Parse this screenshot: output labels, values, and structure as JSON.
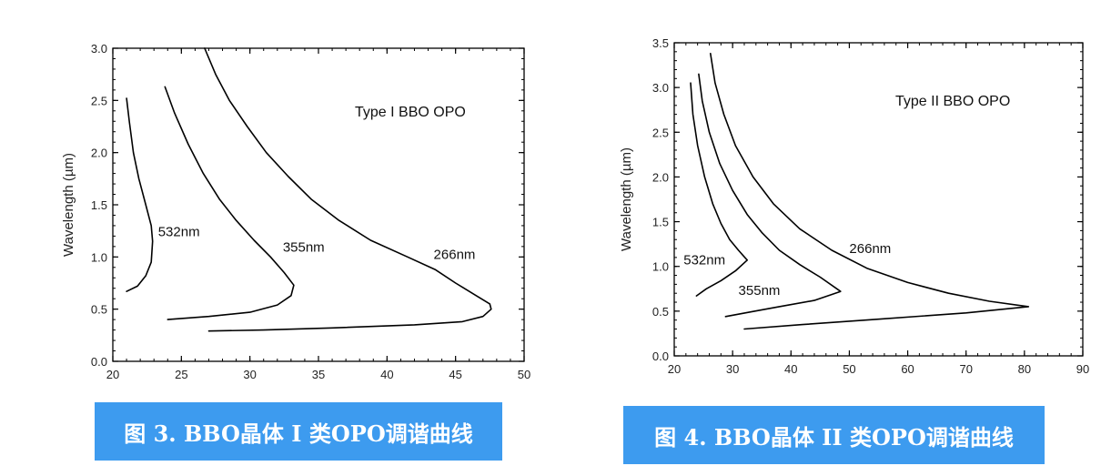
{
  "theme": {
    "caption_bg": "#3d9bef",
    "caption_fg": "#ffffff",
    "line_color": "#000000"
  },
  "chart_data": [
    {
      "type": "line",
      "title": "Type I BBO OPO",
      "xlabel": "",
      "ylabel": "Wavelength (µm)",
      "xlim": [
        20,
        50
      ],
      "ylim": [
        0.0,
        3.0
      ],
      "xticks": [
        "20",
        "25",
        "30",
        "35",
        "40",
        "45",
        "50"
      ],
      "yticks": [
        "0.0",
        "0.5",
        "1.0",
        "1.5",
        "2.0",
        "2.5",
        "3.0"
      ],
      "xtick_values": [
        20,
        25,
        30,
        35,
        40,
        45,
        50
      ],
      "ytick_values": [
        0,
        0.5,
        1.0,
        1.5,
        2.0,
        2.5,
        3.0
      ],
      "caption": "图 3. BBO晶体 I 类OPO调谐曲线",
      "series": [
        {
          "name": "532nm",
          "label_at": [
            23.3,
            1.2
          ],
          "points": [
            [
              21.0,
              2.52
            ],
            [
              21.2,
              2.3
            ],
            [
              21.5,
              2.0
            ],
            [
              21.9,
              1.75
            ],
            [
              22.4,
              1.5
            ],
            [
              22.8,
              1.3
            ],
            [
              22.9,
              1.15
            ],
            [
              22.8,
              0.95
            ],
            [
              22.4,
              0.82
            ],
            [
              21.8,
              0.72
            ],
            [
              21.0,
              0.67
            ]
          ]
        },
        {
          "name": "355nm",
          "label_at": [
            32.4,
            1.05
          ],
          "points": [
            [
              23.8,
              2.63
            ],
            [
              24.5,
              2.38
            ],
            [
              25.5,
              2.08
            ],
            [
              26.6,
              1.8
            ],
            [
              27.8,
              1.55
            ],
            [
              29.0,
              1.35
            ],
            [
              30.3,
              1.16
            ],
            [
              31.5,
              1.0
            ],
            [
              32.5,
              0.85
            ],
            [
              33.2,
              0.73
            ],
            [
              33.0,
              0.63
            ],
            [
              32.0,
              0.54
            ],
            [
              30.0,
              0.47
            ],
            [
              27.0,
              0.43
            ],
            [
              24.0,
              0.4
            ]
          ]
        },
        {
          "name": "266nm",
          "label_at": [
            43.4,
            0.98
          ],
          "points": [
            [
              26.7,
              3.0
            ],
            [
              27.5,
              2.75
            ],
            [
              28.5,
              2.5
            ],
            [
              29.8,
              2.25
            ],
            [
              31.2,
              2.0
            ],
            [
              32.8,
              1.77
            ],
            [
              34.5,
              1.55
            ],
            [
              36.5,
              1.35
            ],
            [
              38.8,
              1.16
            ],
            [
              41.5,
              1.0
            ],
            [
              43.5,
              0.88
            ],
            [
              45.0,
              0.75
            ],
            [
              46.5,
              0.63
            ],
            [
              47.5,
              0.55
            ],
            [
              47.6,
              0.5
            ],
            [
              47.0,
              0.43
            ],
            [
              45.5,
              0.38
            ],
            [
              42.0,
              0.35
            ],
            [
              36.0,
              0.32
            ],
            [
              31.0,
              0.3
            ],
            [
              27.0,
              0.29
            ]
          ]
        }
      ]
    },
    {
      "type": "line",
      "title": "Type II BBO OPO",
      "xlabel": "",
      "ylabel": "Wavelength (µm)",
      "xlim": [
        20,
        90
      ],
      "ylim": [
        0.0,
        3.5
      ],
      "xticks": [
        "20",
        "30",
        "40",
        "50",
        "60",
        "70",
        "80",
        "90"
      ],
      "yticks": [
        "0.0",
        "0.5",
        "1.0",
        "1.5",
        "2.0",
        "2.5",
        "3.0",
        "3.5"
      ],
      "xtick_values": [
        20,
        30,
        40,
        50,
        60,
        70,
        80,
        90
      ],
      "ytick_values": [
        0,
        0.5,
        1.0,
        1.5,
        2.0,
        2.5,
        3.0,
        3.5
      ],
      "caption": "图 4. BBO晶体 II 类OPO调谐曲线",
      "series": [
        {
          "name": "532nm",
          "label_at": [
            21.6,
            1.02
          ],
          "points": [
            [
              22.8,
              3.05
            ],
            [
              23.2,
              2.7
            ],
            [
              24.0,
              2.35
            ],
            [
              25.2,
              2.0
            ],
            [
              26.6,
              1.7
            ],
            [
              28.0,
              1.48
            ],
            [
              29.5,
              1.3
            ],
            [
              31.0,
              1.18
            ],
            [
              32.5,
              1.07
            ],
            [
              30.5,
              0.95
            ],
            [
              28.0,
              0.84
            ],
            [
              25.5,
              0.75
            ],
            [
              23.8,
              0.67
            ]
          ]
        },
        {
          "name": "355nm",
          "label_at": [
            31.0,
            0.68
          ],
          "points": [
            [
              24.2,
              3.15
            ],
            [
              24.8,
              2.85
            ],
            [
              26.0,
              2.5
            ],
            [
              27.8,
              2.15
            ],
            [
              30.0,
              1.85
            ],
            [
              32.5,
              1.58
            ],
            [
              35.0,
              1.38
            ],
            [
              38.0,
              1.18
            ],
            [
              41.5,
              1.02
            ],
            [
              45.0,
              0.88
            ],
            [
              48.5,
              0.72
            ],
            [
              44.0,
              0.62
            ],
            [
              38.0,
              0.55
            ],
            [
              33.0,
              0.49
            ],
            [
              28.8,
              0.44
            ]
          ]
        },
        {
          "name": "266nm",
          "label_at": [
            50.0,
            1.15
          ],
          "points": [
            [
              26.2,
              3.38
            ],
            [
              27.0,
              3.05
            ],
            [
              28.5,
              2.7
            ],
            [
              30.5,
              2.35
            ],
            [
              33.5,
              2.0
            ],
            [
              37.0,
              1.7
            ],
            [
              41.5,
              1.42
            ],
            [
              47.0,
              1.18
            ],
            [
              53.0,
              0.98
            ],
            [
              60.0,
              0.82
            ],
            [
              67.0,
              0.7
            ],
            [
              74.0,
              0.61
            ],
            [
              80.7,
              0.55
            ],
            [
              70.0,
              0.48
            ],
            [
              55.0,
              0.41
            ],
            [
              42.0,
              0.35
            ],
            [
              32.0,
              0.3
            ]
          ]
        }
      ]
    }
  ]
}
